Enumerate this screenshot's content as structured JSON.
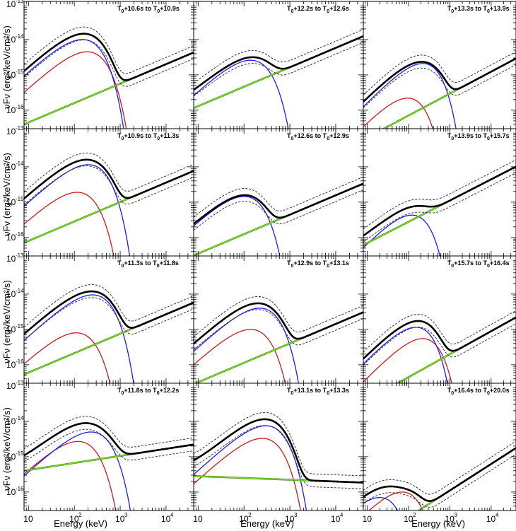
{
  "chart_data": {
    "type": "line",
    "xlabel": "Energy (keV)",
    "ylabel": "νFν (erg²/keV/cm²/s)",
    "xscale": "log",
    "yscale": "log",
    "xlim": [
      8,
      40000
    ],
    "ylim": [
      3e-17,
      1.2e-13
    ],
    "xticks": [
      {
        "base": "10",
        "exp": ""
      },
      {
        "base": "10",
        "exp": "2"
      },
      {
        "base": "10",
        "exp": "3"
      },
      {
        "base": "10",
        "exp": "4"
      }
    ],
    "yticks": [
      {
        "base": "10",
        "exp": "-13"
      },
      {
        "base": "10",
        "exp": "-14"
      },
      {
        "base": "10",
        "exp": "-15"
      },
      {
        "base": "10",
        "exp": "-16"
      }
    ],
    "series_colors": {
      "total": "#000000",
      "upper": "#333333",
      "lower": "#333333",
      "band_main": "#1a1aff",
      "band_extra": "#cc1a1a",
      "powerlaw": "#7ddc1f",
      "powerlaw_edge": "#4a8a1a"
    },
    "panels": [
      {
        "title": {
          "t1": "T",
          "s1": "0",
          "m": "+10.6s to T",
          "s2": "0",
          "e": "+10.9s"
        },
        "main": {
          "A": 1e-14,
          "Ep": 150
        },
        "extra": {
          "A": 4.5e-15,
          "Ep": 190
        },
        "pl": {
          "A": 4.5e-17,
          "idx": 0.55
        },
        "total_peak": 1.35e-14
      },
      {
        "title": {
          "t1": "T",
          "s1": "0",
          "m": "+12.2s to T",
          "s2": "0",
          "e": "+12.6s"
        },
        "main": {
          "A": 2.6e-15,
          "Ep": 140
        },
        "extra": null,
        "pl": {
          "A": 1.3e-16,
          "idx": 0.55
        },
        "total_peak": 3.1e-15
      },
      {
        "title": {
          "t1": "T",
          "s1": "0",
          "m": "+13.3s to T",
          "s2": "0",
          "e": "+13.9s"
        },
        "main": {
          "A": 2.1e-15,
          "Ep": 220
        },
        "extra": {
          "A": 2.2e-16,
          "Ep": 95
        },
        "pl": {
          "A": 1.7e-17,
          "idx": 0.62
        },
        "total_peak": 2.5e-15
      },
      {
        "title": {
          "t1": "T",
          "s1": "0",
          "m": "+10.9s to T",
          "s2": "0",
          "e": "+11.3s"
        },
        "main": {
          "A": 1.15e-14,
          "Ep": 200
        },
        "extra": {
          "A": 1.9e-15,
          "Ep": 115
        },
        "pl": {
          "A": 8e-17,
          "idx": 0.55
        },
        "total_peak": 1.6e-14
      },
      {
        "title": {
          "t1": "T",
          "s1": "0",
          "m": "+12.6s to T",
          "s2": "0",
          "e": "+12.9s"
        },
        "main": {
          "A": 1.45e-15,
          "Ep": 100
        },
        "extra": null,
        "pl": {
          "A": 3.5e-17,
          "idx": 0.55
        },
        "total_peak": 1.8e-15
      },
      {
        "title": {
          "t1": "T",
          "s1": "0",
          "m": "+13.9s to T",
          "s2": "0",
          "e": "+15.7s"
        },
        "main": {
          "A": 4.3e-16,
          "Ep": 120
        },
        "extra": null,
        "pl": {
          "A": 7e-17,
          "idx": 0.6
        },
        "total_peak": 1e-15
      },
      {
        "title": {
          "t1": "T",
          "s1": "0",
          "m": "+11.3s to T",
          "s2": "0",
          "e": "+11.8s"
        },
        "main": {
          "A": 9.5e-15,
          "Ep": 250
        },
        "extra": {
          "A": 8e-16,
          "Ep": 110
        },
        "pl": {
          "A": 6e-17,
          "idx": 0.55
        },
        "total_peak": 1.2e-14
      },
      {
        "title": {
          "t1": "T",
          "s1": "0",
          "m": "+12.9s to T",
          "s2": "0",
          "e": "+13.1s"
        },
        "main": {
          "A": 4e-15,
          "Ep": 220
        },
        "extra": {
          "A": 1e-15,
          "Ep": 140
        },
        "pl": {
          "A": 3.2e-17,
          "idx": 0.55
        },
        "total_peak": 5.5e-15
      },
      {
        "title": {
          "t1": "T",
          "s1": "0",
          "m": "+15.7s to T",
          "s2": "0",
          "e": "+16.4s"
        },
        "main": {
          "A": 1.15e-15,
          "Ep": 150
        },
        "extra": {
          "A": 5.5e-16,
          "Ep": 220
        },
        "pl": {
          "A": 1e-17,
          "idx": 0.65
        },
        "total_peak": 2e-15
      },
      {
        "title": {
          "t1": "T",
          "s1": "0",
          "m": "+11.8s to T",
          "s2": "0",
          "e": "+12.2s"
        },
        "main": {
          "A": 5e-15,
          "Ep": 230
        },
        "extra": {
          "A": 2.7e-15,
          "Ep": 120
        },
        "pl": {
          "A": 4.2e-16,
          "idx": 0.2
        },
        "total_peak": 9e-15
      },
      {
        "title": {
          "t1": "T",
          "s1": "0",
          "m": "+13.1s to T",
          "s2": "0",
          "e": "+13.3s"
        },
        "main": {
          "A": 7.5e-15,
          "Ep": 300
        },
        "extra": {
          "A": 3.3e-15,
          "Ep": 250
        },
        "pl": {
          "A": 2.8e-16,
          "idx": -0.05
        },
        "total_peak": 1.15e-14
      },
      {
        "title": {
          "t1": "T",
          "s1": "0",
          "m": "+16.4s to T",
          "s2": "0",
          "e": "+20.0s"
        },
        "main": {
          "A": 7e-17,
          "Ep": 20
        },
        "extra": {
          "A": 1e-16,
          "Ep": 70
        },
        "pl": {
          "A": 3.5e-18,
          "idx": 0.75
        },
        "total_peak": 2.9e-16
      }
    ]
  }
}
